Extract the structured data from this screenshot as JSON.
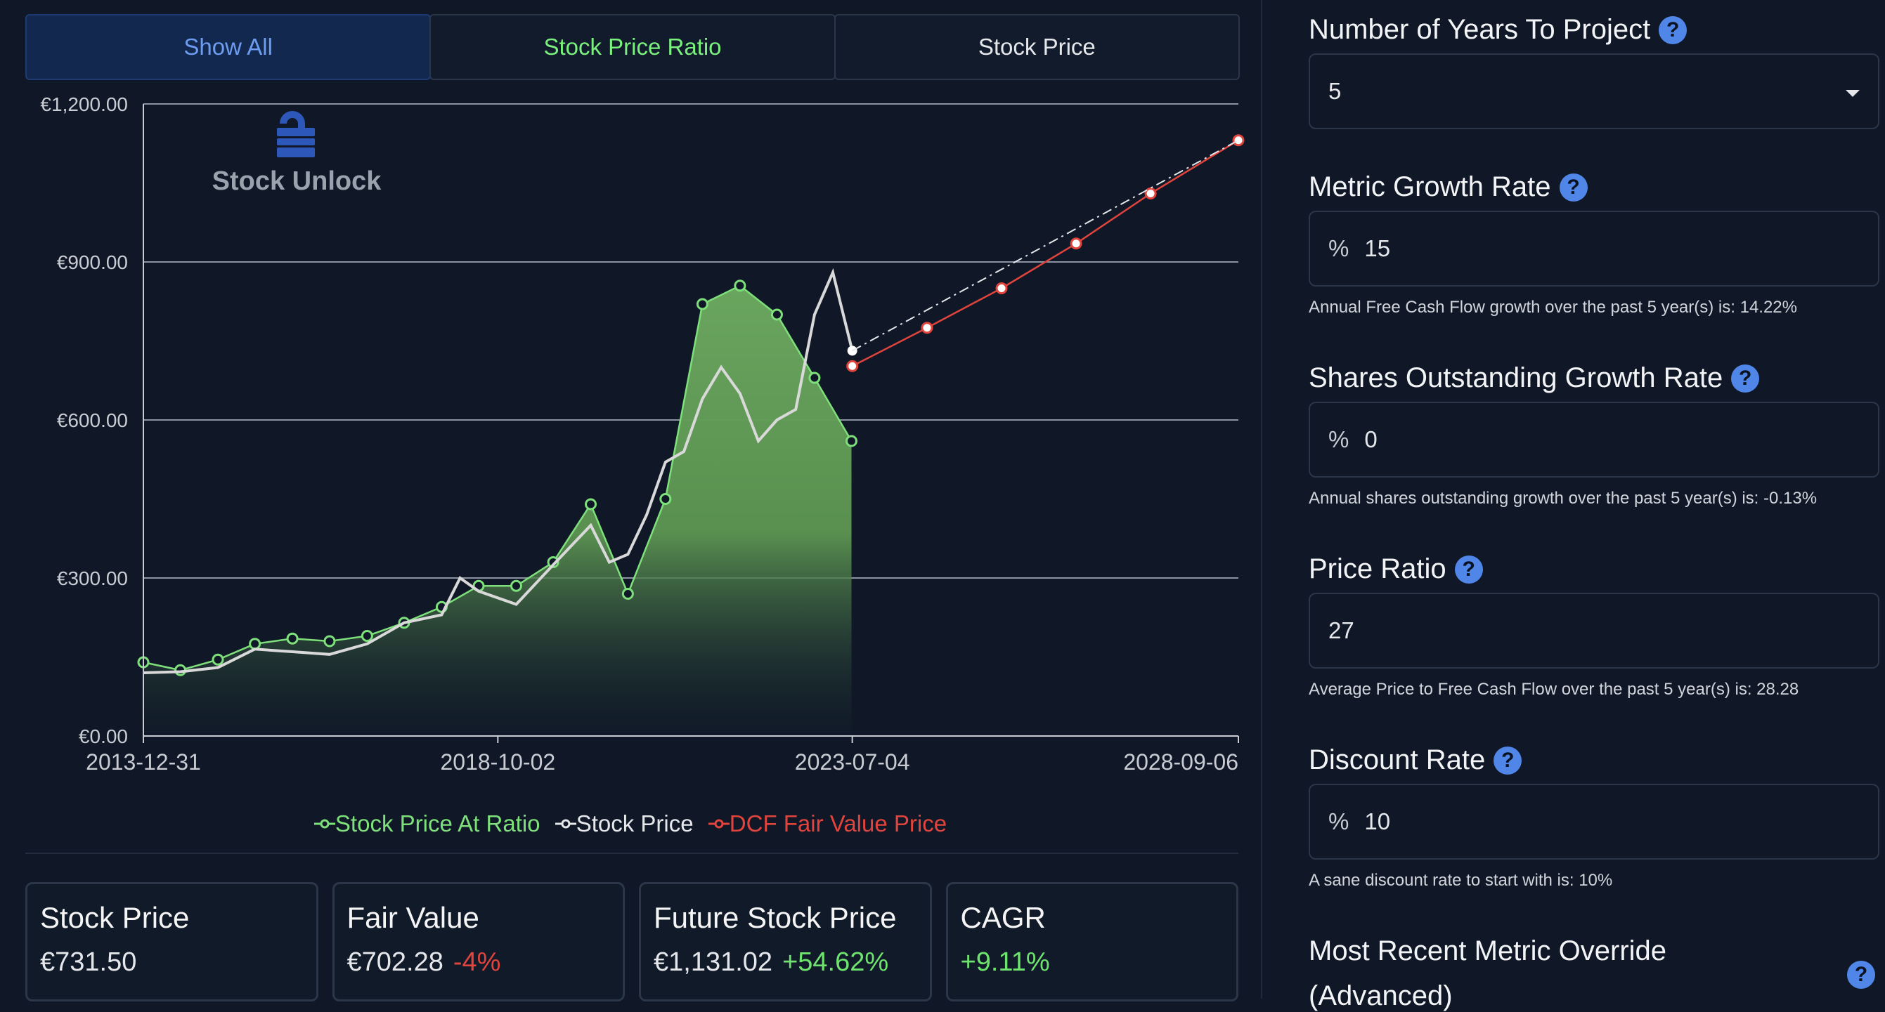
{
  "tabs": {
    "show_all": "Show All",
    "ratio": "Stock Price Ratio",
    "price": "Stock Price"
  },
  "chart_data": {
    "type": "line",
    "logo_text": "Stock Unlock",
    "y_ticks": [
      "€0.00",
      "€300.00",
      "€600.00",
      "€900.00",
      "€1,200.00"
    ],
    "x_ticks": [
      "2013-12-31",
      "2018-10-02",
      "2023-07-04",
      "2028-09-06"
    ],
    "ylim": [
      0,
      1200
    ],
    "xlim": [
      "2013-12-31",
      "2028-09-06"
    ],
    "grid": true,
    "legend_position": "bottom",
    "series": [
      {
        "name": "Stock Price At Ratio",
        "color": "#7ee07a",
        "fill": true,
        "points": [
          [
            "2013-12-31",
            140
          ],
          [
            "2014-06-30",
            125
          ],
          [
            "2014-12-31",
            145
          ],
          [
            "2015-06-30",
            175
          ],
          [
            "2015-12-31",
            185
          ],
          [
            "2016-06-30",
            180
          ],
          [
            "2016-12-31",
            190
          ],
          [
            "2017-06-30",
            215
          ],
          [
            "2017-12-31",
            245
          ],
          [
            "2018-06-30",
            285
          ],
          [
            "2018-12-31",
            285
          ],
          [
            "2019-06-30",
            330
          ],
          [
            "2019-12-31",
            440
          ],
          [
            "2020-06-30",
            270
          ],
          [
            "2020-12-31",
            450
          ],
          [
            "2021-06-30",
            820
          ],
          [
            "2021-12-31",
            855
          ],
          [
            "2022-06-30",
            800
          ],
          [
            "2022-12-31",
            680
          ],
          [
            "2023-06-30",
            560
          ]
        ]
      },
      {
        "name": "Stock Price",
        "color": "#d9d9d9",
        "fill": false,
        "points": [
          [
            "2013-12-31",
            120
          ],
          [
            "2014-06-30",
            122
          ],
          [
            "2014-12-31",
            130
          ],
          [
            "2015-06-30",
            165
          ],
          [
            "2015-12-31",
            160
          ],
          [
            "2016-06-30",
            155
          ],
          [
            "2016-12-31",
            175
          ],
          [
            "2017-06-30",
            215
          ],
          [
            "2017-12-31",
            230
          ],
          [
            "2018-03-31",
            300
          ],
          [
            "2018-06-30",
            275
          ],
          [
            "2018-12-31",
            250
          ],
          [
            "2019-06-30",
            325
          ],
          [
            "2019-12-31",
            400
          ],
          [
            "2020-03-31",
            330
          ],
          [
            "2020-06-30",
            345
          ],
          [
            "2020-09-30",
            420
          ],
          [
            "2020-12-31",
            520
          ],
          [
            "2021-03-31",
            540
          ],
          [
            "2021-06-30",
            640
          ],
          [
            "2021-09-30",
            700
          ],
          [
            "2021-12-31",
            650
          ],
          [
            "2022-03-31",
            560
          ],
          [
            "2022-06-30",
            600
          ],
          [
            "2022-09-30",
            620
          ],
          [
            "2022-12-31",
            800
          ],
          [
            "2023-03-31",
            880
          ],
          [
            "2023-07-04",
            731.5
          ]
        ]
      },
      {
        "name": "DCF Fair Value Price",
        "color": "#e0443c",
        "fill": false,
        "points": [
          [
            "2023-07-04",
            702.28
          ],
          [
            "2024-07-04",
            775
          ],
          [
            "2025-07-04",
            850
          ],
          [
            "2026-07-04",
            935
          ],
          [
            "2027-07-04",
            1030
          ],
          [
            "2028-09-06",
            1131.02
          ]
        ]
      },
      {
        "name": "",
        "color": "#e5e7eb",
        "dashed": true,
        "points": [
          [
            "2023-07-04",
            731.5
          ],
          [
            "2028-09-06",
            1131.02
          ]
        ]
      }
    ]
  },
  "cards": [
    {
      "title": "Stock Price",
      "value": "€731.50",
      "change": "",
      "change_sign": ""
    },
    {
      "title": "Fair Value",
      "value": "€702.28",
      "change": "-4%",
      "change_sign": "neg"
    },
    {
      "title": "Future Stock Price",
      "value": "€1,131.02",
      "change": "+54.62%",
      "change_sign": "pos"
    },
    {
      "title": "CAGR",
      "value": "",
      "change": "+9.11%",
      "change_sign": "pos"
    }
  ],
  "form": {
    "years": {
      "label": "Number of Years To Project",
      "value": "5"
    },
    "growth": {
      "label": "Metric Growth Rate",
      "prefix": "%",
      "value": "15",
      "hint": "Annual Free Cash Flow growth over the past 5 year(s) is: 14.22%"
    },
    "shares": {
      "label": "Shares Outstanding Growth Rate",
      "prefix": "%",
      "value": "0",
      "hint": "Annual shares outstanding growth over the past 5 year(s) is: -0.13%"
    },
    "ratio": {
      "label": "Price Ratio",
      "value": "27",
      "hint": "Average Price to Free Cash Flow over the past 5 year(s) is: 28.28"
    },
    "discount": {
      "label": "Discount Rate",
      "prefix": "%",
      "value": "10",
      "hint": "A sane discount rate to start with is: 10%"
    },
    "override": {
      "label_line1": "Most Recent Metric Override",
      "label_line2": "(Advanced)"
    },
    "help_glyph": "?"
  },
  "colors": {
    "background": "#101828",
    "accent": "#4f86e8",
    "positive": "#6ee46e",
    "negative": "#e0443c"
  }
}
